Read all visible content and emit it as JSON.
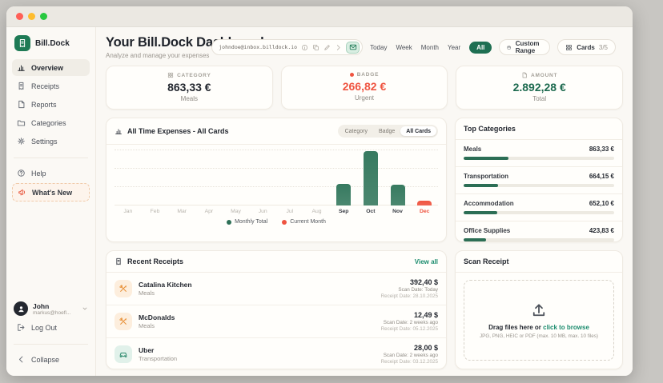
{
  "accent": {
    "green": "#1e7a55",
    "red": "#ef5440",
    "teal_link": "#1c8c6e"
  },
  "sidebar": {
    "logo_text": "Bill.Dock",
    "nav": [
      {
        "label": "Overview",
        "icon": "bar-chart",
        "active": true
      },
      {
        "label": "Receipts",
        "icon": "receipt",
        "active": false
      },
      {
        "label": "Reports",
        "icon": "document",
        "active": false
      },
      {
        "label": "Categories",
        "icon": "folder",
        "active": false
      },
      {
        "label": "Settings",
        "icon": "gear",
        "active": false
      }
    ],
    "secondary": [
      {
        "label": "Help",
        "icon": "help-circle",
        "style": "plain"
      },
      {
        "label": "What's New",
        "icon": "megaphone",
        "style": "whats-new"
      }
    ],
    "user": {
      "name": "John",
      "email": "markus@hoefl..."
    },
    "logout_label": "Log Out",
    "collapse_label": "Collapse"
  },
  "header": {
    "title": "Your Bill.Dock Dashboard",
    "subtitle": "Analyze and manage your expenses",
    "email_pill": "johndoe@inbox.billdock.io",
    "time_filters": [
      "Today",
      "Week",
      "Month",
      "Year",
      "All"
    ],
    "active_filter": "All",
    "custom_range_label": "Custom Range",
    "cards_label": "Cards",
    "cards_count": "3/5"
  },
  "stats": [
    {
      "label": "CATEGORY",
      "icon": "grid",
      "value": "863,33 €",
      "sub": "Meals",
      "color": "#23272f"
    },
    {
      "label": "BADGE",
      "icon": "dot",
      "value": "266,82 €",
      "sub": "Urgent",
      "color": "#ef5440"
    },
    {
      "label": "AMOUNT",
      "icon": "document",
      "value": "2.892,28 €",
      "sub": "Total",
      "color": "#1d6a4f"
    }
  ],
  "chart": {
    "title": "All Time Expenses - All Cards",
    "toggles": [
      "Category",
      "Badge",
      "All Cards"
    ],
    "active_toggle": "All Cards",
    "legend": [
      {
        "label": "Monthly Total",
        "color": "#2e7057"
      },
      {
        "label": "Current Month",
        "color": "#ef5440"
      }
    ]
  },
  "chart_data": {
    "type": "bar",
    "title": "All Time Expenses - All Cards",
    "categories": [
      "Jan",
      "Feb",
      "Mar",
      "Apr",
      "May",
      "Jun",
      "Jul",
      "Aug",
      "Sep",
      "Oct",
      "Nov",
      "Dec"
    ],
    "values": [
      0,
      0,
      0,
      0,
      0,
      0,
      0,
      0,
      620,
      1545,
      600,
      127
    ],
    "ylim": [
      0,
      1600
    ],
    "current_month_index": 11,
    "bar_color": "#377a60",
    "current_color": "#ef5440",
    "grid": true,
    "legend_position": "bottom"
  },
  "top_categories": {
    "title": "Top Categories",
    "items": [
      {
        "name": "Meals",
        "value": "863,33 €",
        "percent": 29.9
      },
      {
        "name": "Transportation",
        "value": "664,15 €",
        "percent": 23.0
      },
      {
        "name": "Accommodation",
        "value": "652,10 €",
        "percent": 22.5
      },
      {
        "name": "Office Supplies",
        "value": "423,83 €",
        "percent": 14.7
      }
    ]
  },
  "receipts": {
    "title": "Recent Receipts",
    "view_all": "View all",
    "items": [
      {
        "name": "Catalina Kitchen",
        "category": "Meals",
        "amount": "392,40 $",
        "scan": "Scan Date: Today",
        "date": "Receipt Date: 28.10.2025",
        "icon": "utensils",
        "icon_bg": "#fdeedd",
        "icon_color": "#e8923a"
      },
      {
        "name": "McDonalds",
        "category": "Meals",
        "amount": "12,49 $",
        "scan": "Scan Date: 2 weeks ago",
        "date": "Receipt Date: 05.12.2025",
        "icon": "utensils",
        "icon_bg": "#fdeedd",
        "icon_color": "#e8923a"
      },
      {
        "name": "Uber",
        "category": "Transportation",
        "amount": "28,00 $",
        "scan": "Scan Date: 2 weeks ago",
        "date": "Receipt Date: 03.12.2025",
        "icon": "car",
        "icon_bg": "#e1f1ea",
        "icon_color": "#2e8a6e"
      }
    ]
  },
  "scan": {
    "title": "Scan Receipt",
    "drag_text": "Drag files here or",
    "browse_text": "click to browse",
    "hint": "JPG, PNG, HEIC or PDF (max. 10 MB, max. 10 files)"
  }
}
